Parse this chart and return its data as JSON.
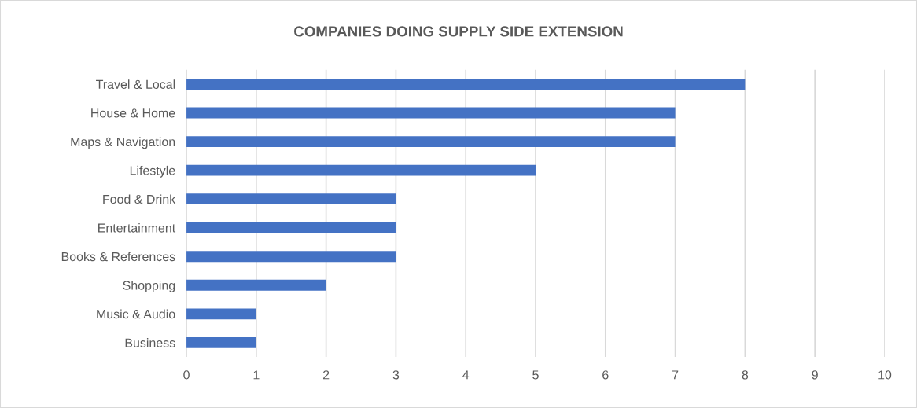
{
  "chart_data": {
    "type": "bar",
    "orientation": "horizontal",
    "title": "COMPANIES DOING SUPPLY SIDE EXTENSION",
    "categories": [
      "Travel & Local",
      "House & Home",
      "Maps & Navigation",
      "Lifestyle",
      "Food & Drink",
      "Entertainment",
      "Books & References",
      "Shopping",
      "Music & Audio",
      "Business"
    ],
    "values": [
      8,
      7,
      7,
      5,
      3,
      3,
      3,
      2,
      1,
      1
    ],
    "color": "#4472c4",
    "xlim": [
      0,
      10
    ],
    "xticks": [
      0,
      1,
      2,
      3,
      4,
      5,
      6,
      7,
      8,
      9,
      10
    ],
    "grid": "x",
    "legend": false
  }
}
